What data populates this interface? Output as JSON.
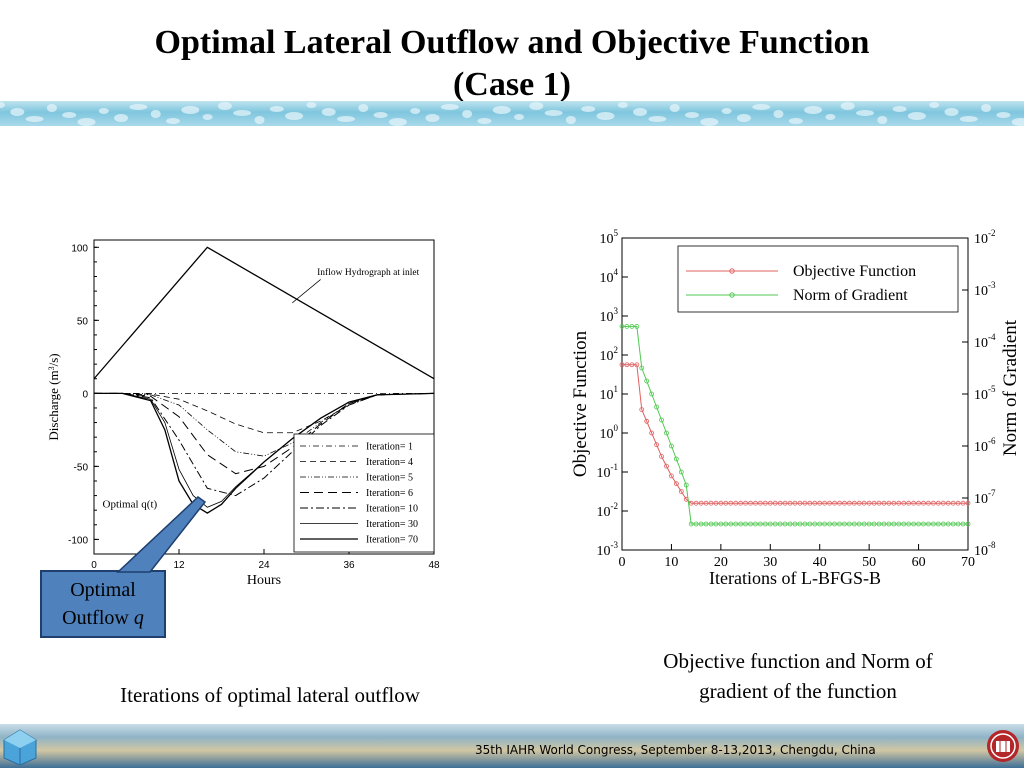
{
  "slide": {
    "title_line1": "Optimal Lateral Outflow and Objective Function",
    "title_line2": "(Case 1)",
    "caption_left": "Iterations of optimal lateral outflow",
    "caption_right_line1": "Objective function and Norm of",
    "caption_right_line2": "gradient of the function",
    "callout_line1": "Optimal",
    "callout_line2": "Outflow ",
    "callout_q": "q",
    "footer": "35th IAHR World Congress, September 8-13,2013, Chengdu, China"
  },
  "chart_data": [
    {
      "type": "line",
      "title": "",
      "xlabel": "Hours",
      "ylabel": "Discharge (m",
      "ylabel_sup": "3",
      "ylabel_end": "/s)",
      "xlim": [
        0,
        48
      ],
      "ylim": [
        -110,
        105
      ],
      "xticks": [
        "0",
        "12",
        "24",
        "36",
        "48"
      ],
      "yticks": [
        "100",
        "50",
        "0",
        "-50",
        "-100"
      ],
      "annotations": {
        "inflow": "Inflow Hydrograph at inlet",
        "optimal": "Optimal q(t)"
      },
      "series": [
        {
          "name": "Inflow Hydrograph at inlet",
          "x": [
            0,
            16,
            48
          ],
          "y": [
            10,
            100,
            10
          ]
        },
        {
          "name": "Iteration=  1",
          "style": "dashdot",
          "x": [
            0,
            48
          ],
          "y": [
            0,
            0
          ]
        },
        {
          "name": "Iteration=  4",
          "style": "dash",
          "x": [
            0,
            4,
            8,
            12,
            16,
            20,
            24,
            28,
            32,
            36,
            40,
            48
          ],
          "y": [
            0,
            0,
            -0.5,
            -4,
            -12,
            -21,
            -27,
            -27,
            -19,
            -8,
            -1,
            0
          ]
        },
        {
          "name": "Iteration=  5",
          "style": "dashdotdot",
          "x": [
            0,
            4,
            8,
            12,
            16,
            20,
            24,
            28,
            32,
            36,
            40,
            48
          ],
          "y": [
            0,
            0,
            -1,
            -8,
            -25,
            -40,
            -43,
            -34,
            -20,
            -7,
            -1,
            0
          ]
        },
        {
          "name": "Iteration=  6",
          "style": "longdash",
          "x": [
            0,
            4,
            8,
            12,
            16,
            20,
            24,
            28,
            32,
            36,
            40,
            48
          ],
          "y": [
            0,
            0,
            -2,
            -16,
            -42,
            -55,
            -50,
            -37,
            -21,
            -7,
            -1,
            0
          ]
        },
        {
          "name": "Iteration= 10",
          "style": "dashdot2",
          "x": [
            0,
            4,
            8,
            12,
            16,
            20,
            24,
            28,
            32,
            36,
            40,
            48
          ],
          "y": [
            0,
            0,
            -3,
            -32,
            -65,
            -70,
            -58,
            -40,
            -22,
            -8,
            -1,
            0
          ]
        },
        {
          "name": "Iteration= 30",
          "style": "thin",
          "x": [
            0,
            4,
            8,
            10,
            12,
            14,
            16,
            18,
            20,
            24,
            28,
            32,
            36,
            40,
            48
          ],
          "y": [
            0,
            0,
            -4,
            -20,
            -52,
            -70,
            -78,
            -74,
            -64,
            -47,
            -31,
            -17,
            -6,
            -1,
            0
          ]
        },
        {
          "name": "Iteration= 70",
          "style": "solid",
          "x": [
            0,
            4,
            8,
            10,
            12,
            14,
            16,
            18,
            20,
            24,
            28,
            32,
            36,
            40,
            48
          ],
          "y": [
            0,
            0,
            -5,
            -25,
            -60,
            -76,
            -82,
            -76,
            -65,
            -47,
            -31,
            -17,
            -6,
            -1,
            0
          ]
        }
      ]
    },
    {
      "type": "line",
      "title": "",
      "xlabel": "Iterations of L-BFGS-B",
      "ylabel": "Objective Function",
      "y2label": "Norm of Gradient",
      "xlim": [
        0,
        70
      ],
      "ylim_log10": [
        -3,
        5
      ],
      "y2lim_log10": [
        -8,
        -2
      ],
      "log_scale": true,
      "grid": false,
      "legend": "top-right",
      "xticks": [
        "0",
        "10",
        "20",
        "30",
        "40",
        "50",
        "60",
        "70"
      ],
      "yticks_exp": [
        "5",
        "4",
        "3",
        "2",
        "1",
        "0",
        "-1",
        "-2",
        "-3"
      ],
      "y2ticks_exp": [
        "-2",
        "-3",
        "-4",
        "-5",
        "-6",
        "-7",
        "-8"
      ],
      "tick_base": "10",
      "series": [
        {
          "name": "Objective Function",
          "color": "#e06060",
          "axis": "left",
          "x": [
            0,
            1,
            2,
            3,
            4,
            5,
            6,
            7,
            8,
            9,
            10,
            11,
            12,
            13,
            14,
            70
          ],
          "log10y": [
            1.75,
            1.75,
            1.75,
            1.75,
            0.6,
            0.3,
            0.0,
            -0.3,
            -0.6,
            -0.85,
            -1.1,
            -1.3,
            -1.5,
            -1.7,
            -1.8,
            -1.8
          ]
        },
        {
          "name": "Norm of Gradient",
          "color": "#50c850",
          "axis": "right",
          "x": [
            0,
            1,
            2,
            3,
            4,
            5,
            6,
            7,
            8,
            9,
            10,
            11,
            12,
            13,
            14,
            70
          ],
          "log10y": [
            -3.7,
            -3.7,
            -3.7,
            -3.7,
            -4.5,
            -4.75,
            -5.0,
            -5.25,
            -5.5,
            -5.75,
            -6.0,
            -6.25,
            -6.5,
            -6.75,
            -7.5,
            -7.5
          ]
        }
      ]
    }
  ]
}
